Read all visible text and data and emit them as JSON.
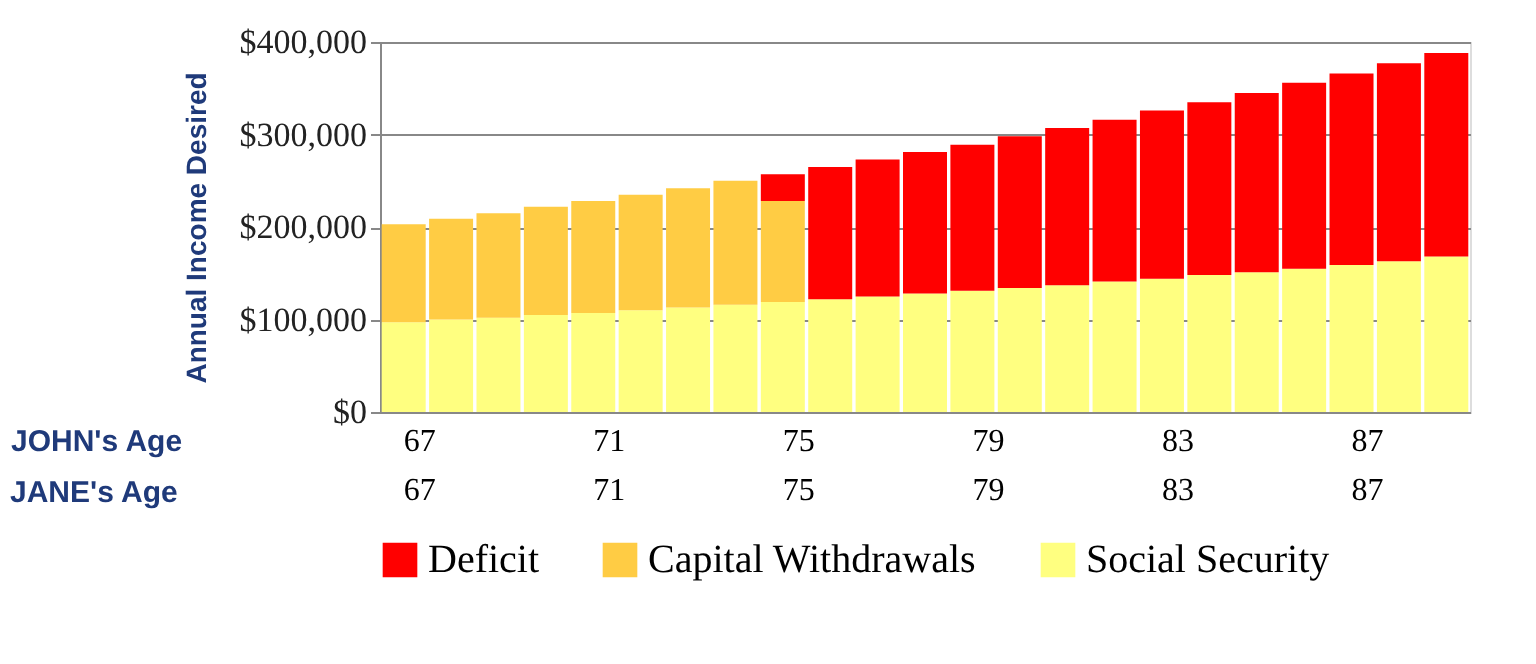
{
  "chart_data": {
    "type": "bar",
    "stacked": true,
    "ylabel": "Annual Income Desired",
    "xlabel": "JOHN's Age",
    "categories": [
      "67",
      null,
      null,
      null,
      "71",
      null,
      null,
      null,
      "75",
      null,
      null,
      null,
      "79",
      null,
      null,
      null,
      "83",
      null,
      null,
      null,
      "87",
      null,
      null
    ],
    "series": [
      {
        "name": "Social Security",
        "color": "#ffff80",
        "values": [
          97000,
          100000,
          102000,
          105000,
          107000,
          110000,
          113000,
          116000,
          119000,
          122000,
          125000,
          128000,
          131000,
          134000,
          137000,
          141000,
          144000,
          148000,
          151000,
          155000,
          159000,
          163000,
          168000
        ]
      },
      {
        "name": "Capital Withdrawals",
        "color": "#ffcc44",
        "values": [
          106000,
          109000,
          113000,
          117000,
          121000,
          125000,
          129000,
          134000,
          109000,
          null,
          null,
          null,
          null,
          null,
          null,
          null,
          null,
          null,
          null,
          null,
          null,
          null,
          null
        ]
      },
      {
        "name": "Deficit",
        "color": "#ff0000",
        "values": [
          null,
          null,
          null,
          null,
          null,
          null,
          null,
          null,
          29000,
          143000,
          148000,
          153000,
          158000,
          164000,
          170000,
          175000,
          182000,
          187000,
          194000,
          201000,
          207000,
          214000,
          220000
        ]
      }
    ],
    "ylim": [
      0,
      400000
    ],
    "yticks": [
      {
        "value": 0,
        "label": "$0"
      },
      {
        "value": 100000,
        "label": "$100,000"
      },
      {
        "value": 200000,
        "label": "$200,000"
      },
      {
        "value": 300000,
        "label": "$300,000"
      },
      {
        "value": 400000,
        "label": "$400,000"
      }
    ],
    "grid": "y",
    "legend": "bottom",
    "annotations": [
      "JANE's Age",
      "67",
      "71",
      "75",
      "79",
      "83",
      "87"
    ]
  }
}
